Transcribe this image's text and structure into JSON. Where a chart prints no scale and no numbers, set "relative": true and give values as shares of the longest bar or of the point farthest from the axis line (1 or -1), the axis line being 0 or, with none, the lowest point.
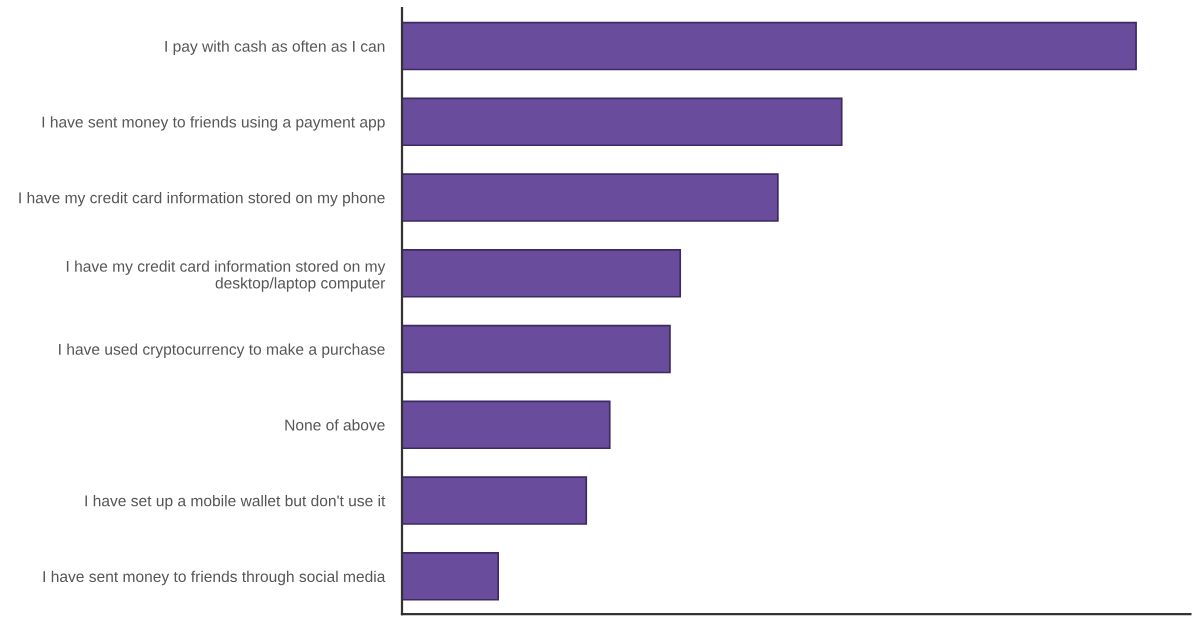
{
  "chart_data": {
    "type": "bar",
    "orientation": "horizontal",
    "relative": true,
    "categories": [
      "I pay with cash as often as I can",
      "I have sent money to friends using a payment app",
      "I have my credit card information stored on my phone",
      "I have my credit card information stored on my desktop/laptop computer",
      "I have used cryptocurrency to make a purchase",
      "None of above",
      "I have set up a mobile wallet but don't use it",
      "I have sent money to friends through social media"
    ],
    "values": [
      1,
      0.599,
      0.512,
      0.379,
      0.365,
      0.283,
      0.251,
      0.131
    ],
    "color": "#6a4c9c",
    "grid": false,
    "legend": false
  }
}
